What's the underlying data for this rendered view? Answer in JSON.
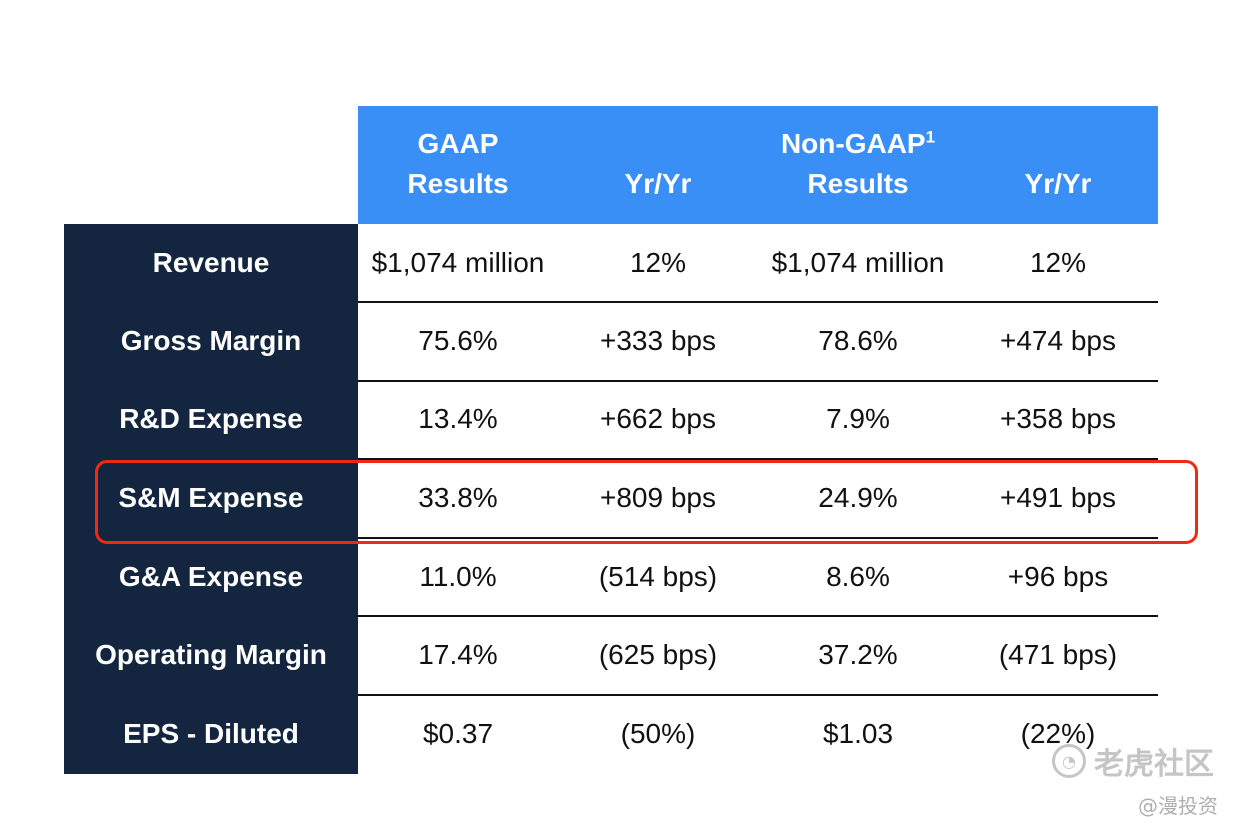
{
  "header": {
    "gaap_line1": "GAAP",
    "gaap_line2": "Results",
    "yryr_1": "Yr/Yr",
    "nongaap_line1": "Non-GAAP",
    "nongaap_footnote": "1",
    "nongaap_line2": "Results",
    "yryr_2": "Yr/Yr"
  },
  "rows": [
    {
      "label": "Revenue",
      "gaap": "$1,074 million",
      "gaap_yy": "12%",
      "nongaap": "$1,074 million",
      "nongaap_yy": "12%"
    },
    {
      "label": "Gross Margin",
      "gaap": "75.6%",
      "gaap_yy": "+333 bps",
      "nongaap": "78.6%",
      "nongaap_yy": "+474 bps"
    },
    {
      "label": "R&D Expense",
      "gaap": "13.4%",
      "gaap_yy": "+662 bps",
      "nongaap": "7.9%",
      "nongaap_yy": "+358 bps"
    },
    {
      "label": "S&M Expense",
      "gaap": "33.8%",
      "gaap_yy": "+809 bps",
      "nongaap": "24.9%",
      "nongaap_yy": "+491 bps"
    },
    {
      "label": "G&A Expense",
      "gaap": "11.0%",
      "gaap_yy": "(514 bps)",
      "nongaap": "8.6%",
      "nongaap_yy": "+96 bps"
    },
    {
      "label": "Operating Margin",
      "gaap": "17.4%",
      "gaap_yy": "(625 bps)",
      "nongaap": "37.2%",
      "nongaap_yy": "(471 bps)"
    },
    {
      "label": "EPS - Diluted",
      "gaap": "$0.37",
      "gaap_yy": "(50%)",
      "nongaap": "$1.03",
      "nongaap_yy": "(22%)"
    }
  ],
  "highlighted_row": "S&M Expense",
  "watermark": {
    "main": "老虎社区",
    "sub": "@漫投资"
  },
  "colors": {
    "header_blue": "#3a8ff7",
    "label_navy": "#14263f",
    "highlight_red": "#ee2a14"
  }
}
